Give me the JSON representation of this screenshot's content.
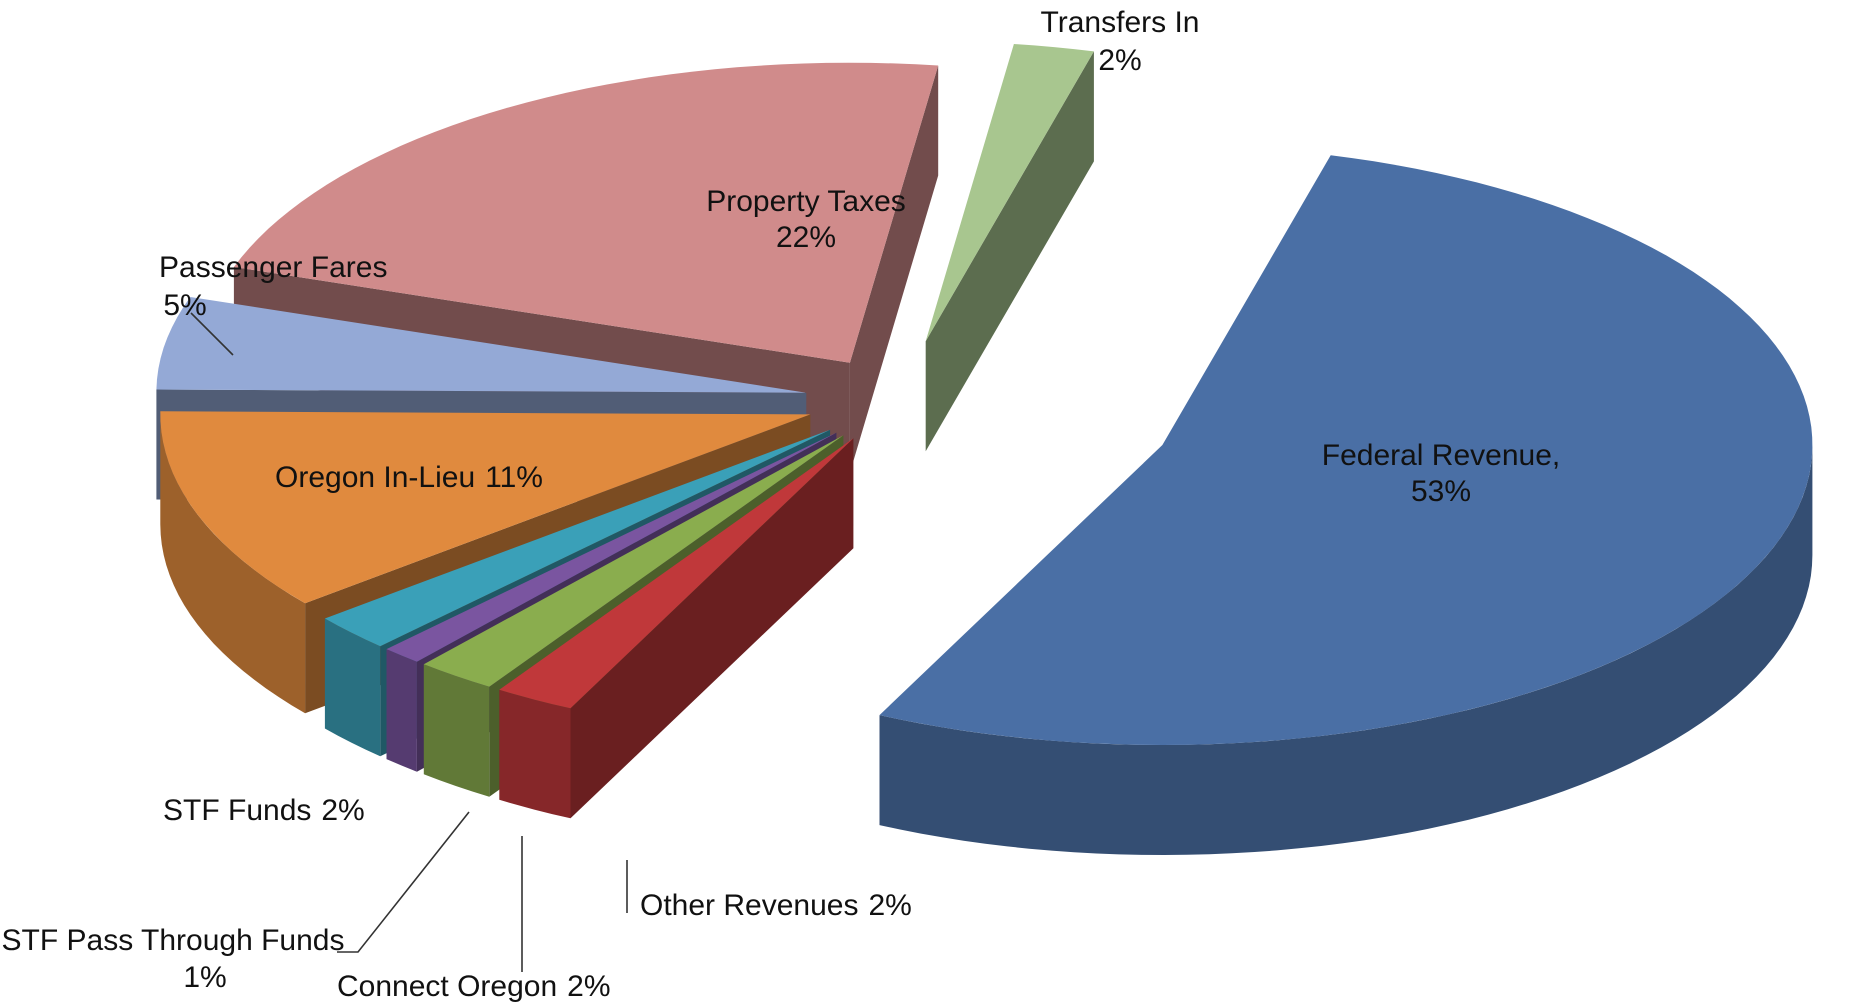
{
  "chart_data": {
    "type": "pie3d",
    "categories": [
      "Federal Revenue,",
      "Other Revenues",
      "Connect Oregon",
      "STF Pass Through Funds",
      "STF Funds",
      "Oregon In-Lieu",
      "Passenger Fares",
      "Property Taxes",
      "Transfers In"
    ],
    "values": [
      53,
      2,
      2,
      1,
      2,
      11,
      5,
      22,
      2
    ],
    "value_labels": [
      "53%",
      "2%",
      "2%",
      "1%",
      "2%",
      "11%",
      "5%",
      "22%",
      "2%"
    ],
    "colors": [
      "#4a6fa5",
      "#c0383a",
      "#8aad4e",
      "#7a55a0",
      "#3aa0b8",
      "#e08a3e",
      "#94a9d6",
      "#d08b8b",
      "#a8c68f"
    ]
  }
}
